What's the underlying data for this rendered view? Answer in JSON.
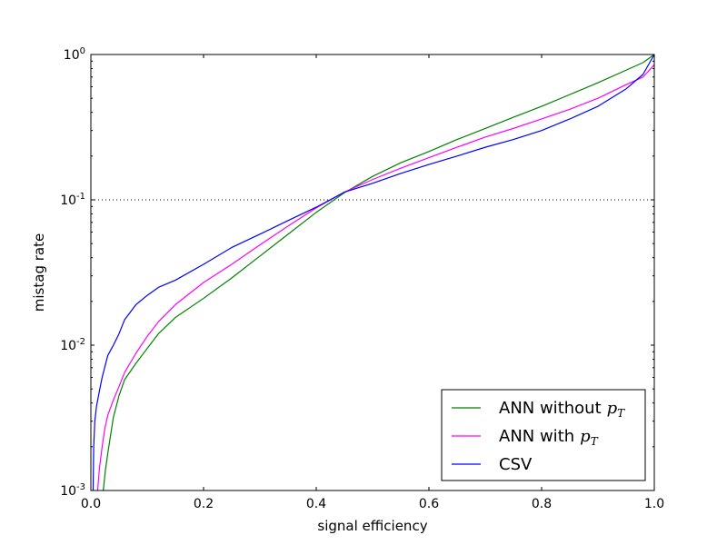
{
  "chart_data": {
    "type": "line",
    "title": "",
    "xlabel": "signal efficiency",
    "ylabel": "mistag rate",
    "xlim": [
      0.0,
      1.0
    ],
    "ylim": [
      0.001,
      1.0
    ],
    "yscale": "log",
    "grid": false,
    "legend_position": "bottom-right",
    "x_ticks": [
      {
        "value": 0.0,
        "label": "0.0"
      },
      {
        "value": 0.2,
        "label": "0.2"
      },
      {
        "value": 0.4,
        "label": "0.4"
      },
      {
        "value": 0.6,
        "label": "0.6"
      },
      {
        "value": 0.8,
        "label": "0.8"
      },
      {
        "value": 1.0,
        "label": "1.0"
      }
    ],
    "y_ticks": [
      {
        "value": 0.001,
        "base": "10",
        "exp": "-3"
      },
      {
        "value": 0.01,
        "base": "10",
        "exp": "-2"
      },
      {
        "value": 0.1,
        "base": "10",
        "exp": "-1"
      },
      {
        "value": 1.0,
        "base": "10",
        "exp": "0"
      }
    ],
    "reference_line": {
      "y": 0.1,
      "style": "dotted",
      "color": "#000000"
    },
    "series": [
      {
        "name_main": "ANN without",
        "name_math": "p",
        "name_sub": "T",
        "color": "#008000",
        "points": [
          [
            0.022,
            0.001
          ],
          [
            0.026,
            0.0014
          ],
          [
            0.03,
            0.0018
          ],
          [
            0.035,
            0.0024
          ],
          [
            0.04,
            0.0032
          ],
          [
            0.05,
            0.0045
          ],
          [
            0.06,
            0.0058
          ],
          [
            0.08,
            0.0075
          ],
          [
            0.1,
            0.0095
          ],
          [
            0.12,
            0.012
          ],
          [
            0.15,
            0.0155
          ],
          [
            0.2,
            0.021
          ],
          [
            0.25,
            0.029
          ],
          [
            0.3,
            0.041
          ],
          [
            0.35,
            0.058
          ],
          [
            0.4,
            0.082
          ],
          [
            0.45,
            0.112
          ],
          [
            0.5,
            0.145
          ],
          [
            0.55,
            0.18
          ],
          [
            0.6,
            0.215
          ],
          [
            0.65,
            0.26
          ],
          [
            0.7,
            0.31
          ],
          [
            0.75,
            0.37
          ],
          [
            0.8,
            0.44
          ],
          [
            0.85,
            0.53
          ],
          [
            0.9,
            0.64
          ],
          [
            0.95,
            0.78
          ],
          [
            0.98,
            0.88
          ],
          [
            1.0,
            1.0
          ]
        ]
      },
      {
        "name_main": "ANN with",
        "name_math": "p",
        "name_sub": "T",
        "color": "#ff00ff",
        "points": [
          [
            0.012,
            0.001
          ],
          [
            0.015,
            0.0014
          ],
          [
            0.02,
            0.002
          ],
          [
            0.025,
            0.0027
          ],
          [
            0.03,
            0.0033
          ],
          [
            0.04,
            0.0042
          ],
          [
            0.05,
            0.0052
          ],
          [
            0.06,
            0.0065
          ],
          [
            0.08,
            0.0088
          ],
          [
            0.1,
            0.0115
          ],
          [
            0.12,
            0.0145
          ],
          [
            0.15,
            0.019
          ],
          [
            0.2,
            0.027
          ],
          [
            0.25,
            0.036
          ],
          [
            0.3,
            0.049
          ],
          [
            0.35,
            0.066
          ],
          [
            0.4,
            0.088
          ],
          [
            0.45,
            0.113
          ],
          [
            0.5,
            0.138
          ],
          [
            0.55,
            0.165
          ],
          [
            0.6,
            0.195
          ],
          [
            0.65,
            0.23
          ],
          [
            0.7,
            0.27
          ],
          [
            0.75,
            0.31
          ],
          [
            0.8,
            0.36
          ],
          [
            0.85,
            0.42
          ],
          [
            0.9,
            0.5
          ],
          [
            0.95,
            0.62
          ],
          [
            0.98,
            0.7
          ],
          [
            1.0,
            0.85
          ]
        ]
      },
      {
        "name_main": "CSV",
        "name_math": "",
        "name_sub": "",
        "color": "#0000ff",
        "points": [
          [
            0.004,
            0.001
          ],
          [
            0.005,
            0.002
          ],
          [
            0.007,
            0.003
          ],
          [
            0.01,
            0.0038
          ],
          [
            0.015,
            0.0048
          ],
          [
            0.02,
            0.006
          ],
          [
            0.03,
            0.0085
          ],
          [
            0.04,
            0.01
          ],
          [
            0.05,
            0.012
          ],
          [
            0.06,
            0.015
          ],
          [
            0.08,
            0.019
          ],
          [
            0.1,
            0.022
          ],
          [
            0.12,
            0.025
          ],
          [
            0.15,
            0.028
          ],
          [
            0.2,
            0.036
          ],
          [
            0.25,
            0.047
          ],
          [
            0.3,
            0.058
          ],
          [
            0.35,
            0.072
          ],
          [
            0.4,
            0.089
          ],
          [
            0.45,
            0.113
          ],
          [
            0.5,
            0.13
          ],
          [
            0.55,
            0.152
          ],
          [
            0.6,
            0.175
          ],
          [
            0.65,
            0.2
          ],
          [
            0.7,
            0.23
          ],
          [
            0.75,
            0.26
          ],
          [
            0.8,
            0.3
          ],
          [
            0.85,
            0.36
          ],
          [
            0.9,
            0.44
          ],
          [
            0.95,
            0.58
          ],
          [
            0.98,
            0.73
          ],
          [
            1.0,
            1.0
          ]
        ]
      }
    ]
  }
}
